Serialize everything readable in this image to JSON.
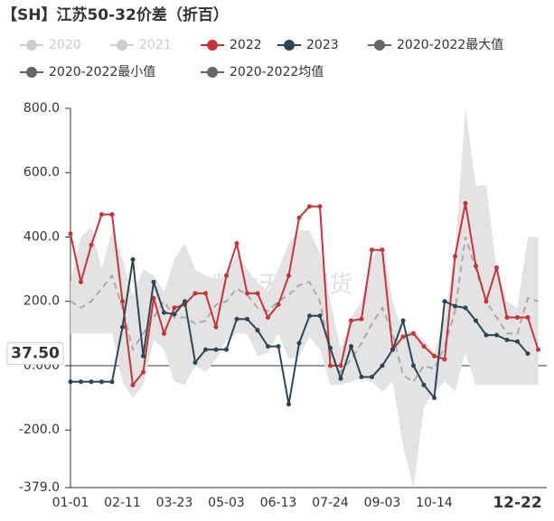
{
  "chart_data": {
    "type": "line",
    "title": "【SH】江苏50-32价差（折百）",
    "watermark": "紫金天风期货",
    "categories": [
      "01-01",
      null,
      null,
      null,
      null,
      "02-11",
      null,
      null,
      null,
      null,
      "03-23",
      null,
      null,
      null,
      null,
      "05-03",
      null,
      null,
      null,
      null,
      "06-13",
      null,
      null,
      null,
      null,
      "07-24",
      null,
      null,
      null,
      null,
      "09-03",
      null,
      null,
      null,
      null,
      "10-14",
      null,
      null,
      null,
      null,
      null,
      null,
      null,
      "12-22",
      null,
      null
    ],
    "ylim": [
      -379,
      800
    ],
    "yticks": [
      {
        "value": 800,
        "label": "800.0"
      },
      {
        "value": 600,
        "label": "600.0"
      },
      {
        "value": 400,
        "label": "400.0"
      },
      {
        "value": 200,
        "label": "200.0"
      },
      {
        "value": 0,
        "label": "0.000"
      },
      {
        "value": -200,
        "label": "-200.0"
      },
      {
        "value": -379,
        "label": "-379.0"
      }
    ],
    "current_label": {
      "value": 37.5,
      "label": "37.50"
    },
    "series": [
      {
        "name": "2020",
        "color": "#cccccc",
        "visible": false,
        "values": [
          null,
          null,
          null,
          null,
          null,
          null,
          null,
          null,
          null,
          null,
          null,
          null,
          null,
          null,
          null,
          null,
          null,
          null,
          null,
          null,
          null,
          null,
          null,
          null,
          null,
          null,
          null,
          null,
          null,
          null,
          null,
          null,
          null,
          null,
          null,
          null,
          null,
          null,
          null,
          null,
          null,
          null,
          null,
          null,
          null,
          null
        ]
      },
      {
        "name": "2021",
        "color": "#cccccc",
        "visible": false,
        "values": [
          null,
          null,
          null,
          null,
          null,
          null,
          null,
          null,
          null,
          null,
          null,
          null,
          null,
          null,
          null,
          null,
          null,
          null,
          null,
          null,
          null,
          null,
          null,
          null,
          null,
          null,
          null,
          null,
          null,
          null,
          null,
          null,
          null,
          null,
          null,
          null,
          null,
          null,
          null,
          null,
          null,
          null,
          null,
          null,
          null,
          null
        ]
      },
      {
        "name": "2022",
        "color": "#c8333a",
        "role": "line",
        "values": [
          410,
          260,
          375,
          470,
          470,
          200,
          -60,
          -20,
          210,
          100,
          180,
          190,
          225,
          225,
          120,
          280,
          380,
          225,
          225,
          150,
          190,
          280,
          460,
          495,
          495,
          0,
          0,
          140,
          145,
          360,
          360,
          50,
          90,
          100,
          60,
          30,
          20,
          340,
          505,
          310,
          200,
          305,
          150,
          150,
          150,
          50
        ]
      },
      {
        "name": "2023",
        "color": "#2f4554",
        "role": "line",
        "values": [
          -50,
          -50,
          -50,
          -50,
          -50,
          120,
          330,
          30,
          260,
          165,
          160,
          200,
          10,
          50,
          50,
          50,
          145,
          145,
          110,
          60,
          60,
          -120,
          70,
          155,
          155,
          55,
          -40,
          60,
          -35,
          -35,
          0,
          50,
          140,
          0,
          -60,
          -100,
          200,
          185,
          180,
          140,
          95,
          95,
          80,
          75,
          37.5,
          null
        ]
      },
      {
        "name": "2020-2022最大值",
        "color": "#666666",
        "role": "max",
        "values": [
          260,
          400,
          430,
          300,
          420,
          330,
          220,
          300,
          280,
          230,
          330,
          380,
          300,
          280,
          270,
          280,
          350,
          300,
          260,
          230,
          300,
          380,
          420,
          420,
          350,
          200,
          50,
          150,
          200,
          330,
          380,
          200,
          100,
          110,
          80,
          40,
          150,
          350,
          800,
          560,
          560,
          300,
          200,
          180,
          400,
          400
        ]
      },
      {
        "name": "2020-2022最小值",
        "color": "#666666",
        "role": "min",
        "values": [
          100,
          100,
          100,
          100,
          100,
          -50,
          -100,
          -60,
          80,
          50,
          -50,
          -60,
          0,
          -20,
          20,
          80,
          100,
          100,
          30,
          40,
          100,
          20,
          30,
          90,
          50,
          -60,
          -60,
          -50,
          -40,
          -50,
          -80,
          -50,
          -250,
          -379,
          -130,
          -80,
          -50,
          -80,
          40,
          -60,
          -60,
          -60,
          -60,
          -60,
          -60,
          -60
        ]
      },
      {
        "name": "2020-2022均值",
        "color": "#666666",
        "role": "mean",
        "values": [
          200,
          180,
          200,
          240,
          280,
          180,
          50,
          100,
          150,
          200,
          150,
          150,
          130,
          140,
          190,
          200,
          240,
          220,
          180,
          170,
          200,
          220,
          250,
          260,
          200,
          30,
          -20,
          20,
          70,
          130,
          180,
          100,
          -30,
          -50,
          0,
          -10,
          60,
          170,
          400,
          300,
          200,
          150,
          100,
          100,
          210,
          200
        ]
      }
    ]
  }
}
